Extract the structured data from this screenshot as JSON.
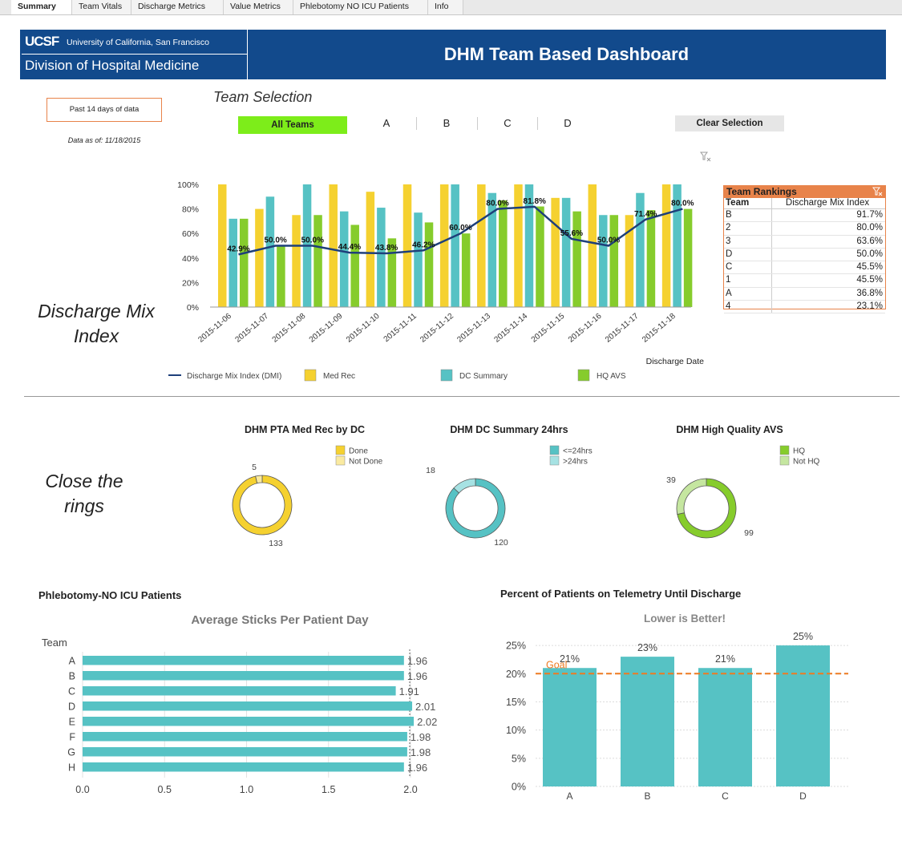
{
  "tabs": [
    "Summary",
    "Team Vitals",
    "Discharge Metrics",
    "Value Metrics",
    "Phlebotomy NO ICU Patients",
    "Info"
  ],
  "header": {
    "logo": "UCSF",
    "org_name": "University of California, San Francisco",
    "division": "Division of Hospital Medicine",
    "title": "DHM Team Based Dashboard"
  },
  "filters": {
    "period": "Past 14 days of data",
    "data_as_of": "Data as of: 11/18/2015",
    "team_selection_label": "Team Selection",
    "all_teams": "All Teams",
    "teams": [
      "A",
      "B",
      "C",
      "D"
    ],
    "clear_selection": "Clear Selection"
  },
  "colors": {
    "med_rec": "#f5d130",
    "dc_summary": "#56c2c4",
    "hq_avs": "#86cc2c",
    "dmi_line": "#1e3f7a",
    "accent": "#e8834a",
    "banner": "#124a8c",
    "goal": "#ee7a20"
  },
  "sections": {
    "dmi_label": "Discharge Mix Index",
    "rings_label": "Close the rings"
  },
  "chart_data": [
    {
      "type": "bar",
      "categories": [
        "2015-11-06",
        "2015-11-07",
        "2015-11-08",
        "2015-11-09",
        "2015-11-10",
        "2015-11-11",
        "2015-11-12",
        "2015-11-13",
        "2015-11-14",
        "2015-11-15",
        "2015-11-16",
        "2015-11-17",
        "2015-11-18"
      ],
      "series": [
        {
          "name": "Med Rec",
          "values": [
            100,
            80,
            75,
            100,
            94,
            100,
            100,
            100,
            100,
            89,
            100,
            75,
            100
          ]
        },
        {
          "name": "DC Summary",
          "values": [
            72,
            90,
            100,
            78,
            81,
            77,
            100,
            93,
            100,
            89,
            75,
            93,
            100
          ]
        },
        {
          "name": "HQ AVS",
          "values": [
            72,
            50,
            75,
            67,
            56,
            69,
            60,
            87,
            82,
            78,
            75,
            79,
            80
          ]
        },
        {
          "name": "Discharge Mix Index (DMI)",
          "type": "line",
          "values": [
            42.9,
            50.0,
            50.0,
            44.4,
            43.8,
            46.2,
            60.0,
            80.0,
            81.8,
            55.6,
            50.0,
            71.4,
            80.0
          ],
          "labels": [
            "42.9%",
            "50.0%",
            "50.0%",
            "44.4%",
            "43.8%",
            "46.2%",
            "60.0%",
            "80.0%",
            "81.8%",
            "55.6%",
            "50.0%",
            "71.4%",
            "80.0%"
          ]
        }
      ],
      "ylim": [
        0,
        100
      ],
      "yticks": [
        "0%",
        "20%",
        "40%",
        "60%",
        "80%",
        "100%"
      ],
      "xlabel": "Discharge Date",
      "legend_position": "bottom"
    },
    {
      "type": "table",
      "title": "Team Rankings",
      "columns": [
        "Team",
        "Discharge Mix Index"
      ],
      "rows": [
        [
          "B",
          "91.7%"
        ],
        [
          "2",
          "80.0%"
        ],
        [
          "3",
          "63.6%"
        ],
        [
          "D",
          "50.0%"
        ],
        [
          "C",
          "45.5%"
        ],
        [
          "1",
          "45.5%"
        ],
        [
          "A",
          "36.8%"
        ],
        [
          "4",
          "23.1%"
        ]
      ]
    },
    {
      "type": "pie",
      "title": "DHM PTA Med Rec by DC",
      "labels": [
        "Done",
        "Not Done"
      ],
      "values": [
        133,
        5
      ],
      "colors": [
        "#f5d130",
        "#faeaa0"
      ]
    },
    {
      "type": "pie",
      "title": "DHM DC Summary 24hrs",
      "labels": [
        "<=24hrs",
        ">24hrs"
      ],
      "values": [
        120,
        18
      ],
      "colors": [
        "#56c2c4",
        "#a6e2e3"
      ]
    },
    {
      "type": "pie",
      "title": "DHM High Quality AVS",
      "labels": [
        "HQ",
        "Not HQ"
      ],
      "values": [
        99,
        39
      ],
      "colors": [
        "#86cc2c",
        "#c5e6a0"
      ]
    },
    {
      "type": "bar",
      "orientation": "horizontal",
      "section_title": "Phlebotomy-NO ICU Patients",
      "title": "Average Sticks Per Patient Day",
      "ylabel": "Team",
      "categories": [
        "A",
        "B",
        "C",
        "D",
        "E",
        "F",
        "G",
        "H"
      ],
      "values": [
        1.96,
        1.96,
        1.91,
        2.01,
        2.02,
        1.98,
        1.98,
        1.96
      ],
      "labels": [
        "1.96",
        "1.96",
        "1.91",
        "2.01",
        "2.02",
        "1.98",
        "1.98",
        "1.96"
      ],
      "xlim": [
        0,
        2.0
      ],
      "xticks": [
        "0.0",
        "0.5",
        "1.0",
        "1.5",
        "2.0"
      ]
    },
    {
      "type": "bar",
      "section_title": "Percent of Patients on Telemetry Until Discharge",
      "title": "Lower is Better!",
      "categories": [
        "A",
        "B",
        "C",
        "D"
      ],
      "values": [
        21,
        23,
        21,
        25
      ],
      "labels": [
        "21%",
        "23%",
        "21%",
        "25%"
      ],
      "goal": 20,
      "goal_label": "Goal",
      "ylim": [
        0,
        27
      ],
      "yticks": [
        "0%",
        "5%",
        "10%",
        "15%",
        "20%",
        "25%"
      ]
    }
  ]
}
